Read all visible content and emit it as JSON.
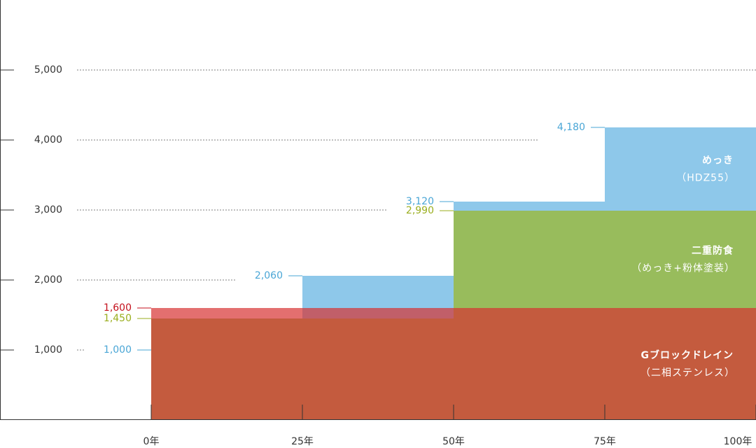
{
  "chart_data": {
    "type": "step-area",
    "xlim": [
      -25,
      100
    ],
    "ylim": [
      0,
      6000
    ],
    "xticks": [
      {
        "value": 0,
        "label": "0年"
      },
      {
        "value": 25,
        "label": "25年"
      },
      {
        "value": 50,
        "label": "50年"
      },
      {
        "value": 75,
        "label": "75年"
      },
      {
        "value": 100,
        "label": "100年"
      }
    ],
    "yticks": [
      {
        "value": 1000,
        "label": "1,000"
      },
      {
        "value": 2000,
        "label": "2,000"
      },
      {
        "value": 3000,
        "label": "3,000"
      },
      {
        "value": 4000,
        "label": "4,000"
      },
      {
        "value": 5000,
        "label": "5,000"
      }
    ],
    "grid": true,
    "series": [
      {
        "name": "めっき",
        "sublabel": "（HDZ55）",
        "color": "#8ec8ea",
        "label_color": "#4aa6d6",
        "opacity": 1,
        "x": [
          0,
          25,
          50,
          75
        ],
        "values": [
          1000,
          2060,
          3120,
          4180
        ],
        "value_labels": [
          "1,000",
          "2,060",
          "3,120",
          "4,180"
        ]
      },
      {
        "name": "二重防食",
        "sublabel": "（めっき+粉体塗装）",
        "color": "#98bc5c",
        "label_color": "#9aae1e",
        "opacity": 1,
        "x": [
          0,
          50
        ],
        "values": [
          1450,
          2990
        ],
        "value_labels": [
          "1,450",
          "2,990"
        ]
      },
      {
        "name": "Gブロックドレイン",
        "sublabel": "（二相ステンレス）",
        "color": "#d73232",
        "label_color": "#c4101c",
        "opacity": 0.7,
        "x": [
          0
        ],
        "values": [
          1600
        ],
        "value_labels": [
          "1,600"
        ]
      }
    ]
  }
}
